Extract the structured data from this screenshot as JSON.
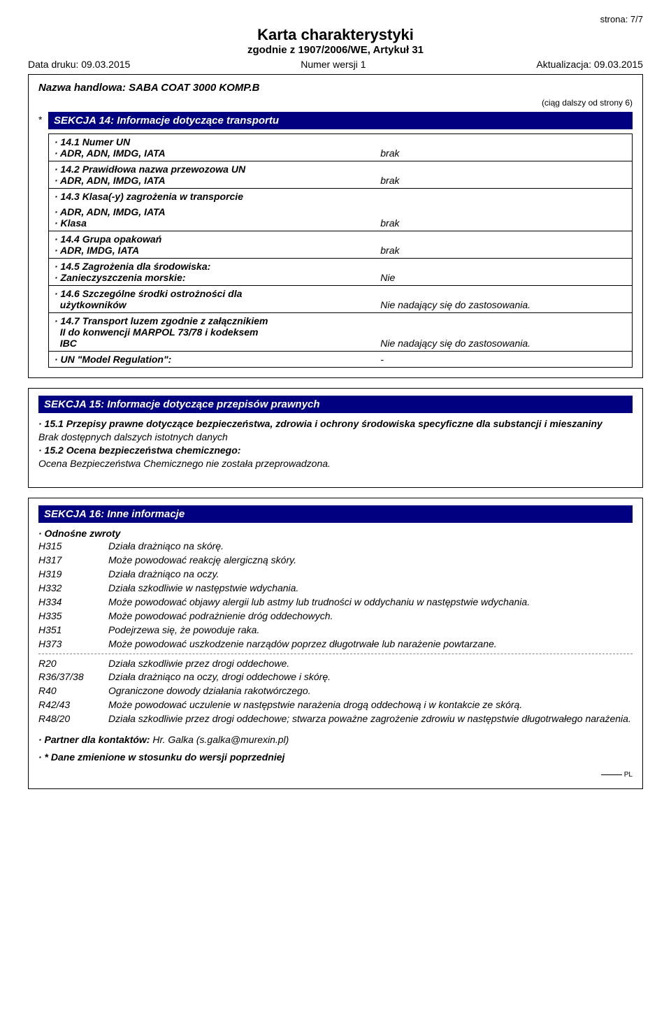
{
  "page": {
    "page_num": "strona: 7/7",
    "title": "Karta charakterystyki",
    "subtitle": "zgodnie z 1907/2006/WE, Artykuł 31",
    "print_date_label": "Data druku: 09.03.2015",
    "version_label": "Numer wersji 1",
    "revision_label": "Aktualizacja: 09.03.2015",
    "trade_name": "Nazwa handlowa: SABA COAT 3000 KOMP.B",
    "cont_from": "(ciąg dalszy od strony 6)",
    "footer_pl": "PL"
  },
  "sec14": {
    "star": "*",
    "header": "SEKCJA 14: Informacje dotyczące transportu",
    "r1a": "· 14.1 Numer UN",
    "r1b_k": "· ADR, ADN, IMDG, IATA",
    "r1b_v": "brak",
    "r2a": "· 14.2 Prawidłowa nazwa przewozowa UN",
    "r2b_k": "· ADR, ADN, IMDG, IATA",
    "r2b_v": "brak",
    "r3a": "· 14.3 Klasa(-y) zagrożenia w transporcie",
    "r3b_k": "· ADR, ADN, IMDG, IATA",
    "r3c_k": "· Klasa",
    "r3c_v": "brak",
    "r4a": "· 14.4 Grupa opakowań",
    "r4b_k": "· ADR, IMDG, IATA",
    "r4b_v": "brak",
    "r5a": "· 14.5 Zagrożenia dla środowiska:",
    "r5b_k": "· Zanieczyszczenia morskie:",
    "r5b_v": "Nie",
    "r6a": "· 14.6 Szczególne środki ostrożności dla",
    "r6b_k": "  użytkowników",
    "r6b_v": "Nie nadający się do zastosowania.",
    "r7a": "· 14.7 Transport luzem zgodnie z załącznikiem",
    "r7b": "  II do konwencji MARPOL 73/78 i kodeksem",
    "r7c_k": "  IBC",
    "r7c_v": "Nie nadający się do zastosowania.",
    "r8_k": "· UN \"Model Regulation\":",
    "r8_v": "-"
  },
  "sec15": {
    "header": "SEKCJA 15: Informacje dotyczące przepisów prawnych",
    "p1_label": "· 15.1 Przepisy prawne dotyczące bezpieczeństwa, zdrowia i ochrony środowiska specyficzne dla substancji i mieszaniny",
    "p1_text": "Brak dostępnych dalszych istotnych danych",
    "p2_label": "· 15.2 Ocena bezpieczeństwa chemicznego:",
    "p2_text": "Ocena Bezpieczeństwa Chemicznego nie została przeprowadzona."
  },
  "sec16": {
    "header": "SEKCJA 16: Inne informacje",
    "phrases_label": "· Odnośne zwroty",
    "h": [
      {
        "c": "H315",
        "d": "Działa drażniąco na skórę."
      },
      {
        "c": "H317",
        "d": "Może powodować reakcję alergiczną skóry."
      },
      {
        "c": "H319",
        "d": "Działa drażniąco na oczy."
      },
      {
        "c": "H332",
        "d": "Działa szkodliwie w następstwie wdychania."
      },
      {
        "c": "H334",
        "d": "Może powodować objawy alergii lub astmy lub trudności w oddychaniu w następstwie wdychania."
      },
      {
        "c": "H335",
        "d": "Może powodować podrażnienie dróg oddechowych."
      },
      {
        "c": "H351",
        "d": "Podejrzewa się, że powoduje raka."
      },
      {
        "c": "H373",
        "d": "Może powodować uszkodzenie narządów poprzez długotrwałe lub narażenie powtarzane."
      }
    ],
    "r": [
      {
        "c": "R20",
        "d": "Działa szkodliwie przez drogi oddechowe."
      },
      {
        "c": "R36/37/38",
        "d": "Działa drażniąco na oczy, drogi oddechowe i skórę."
      },
      {
        "c": "R40",
        "d": "Ograniczone dowody działania rakotwórczego."
      },
      {
        "c": "R42/43",
        "d": "Może powodować uczulenie w następstwie narażenia drogą oddechową i w kontakcie ze skórą."
      },
      {
        "c": "R48/20",
        "d": "Działa szkodliwie przez drogi oddechowe; stwarza poważne zagrożenie zdrowiu w następstwie długotrwałego narażenia."
      }
    ],
    "contact_label": "· Partner dla kontaktów: ",
    "contact_value": "Hr. Galka (s.galka@murexin.pl)",
    "changed_label": "· * Dane zmienione w stosunku do wersji poprzedniej"
  },
  "colors": {
    "section_bg": "#000080",
    "section_fg": "#ffffff",
    "border": "#000000",
    "text": "#000000",
    "bg": "#ffffff"
  }
}
